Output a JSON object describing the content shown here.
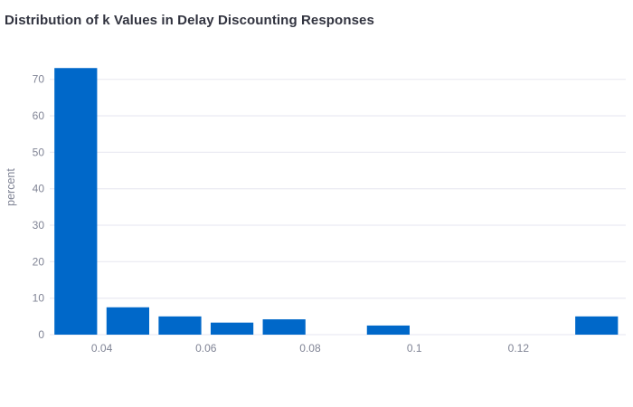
{
  "chart": {
    "title": "Distribution of k Values in Delay Discounting Responses"
  },
  "chart_data": {
    "type": "bar",
    "subtype": "histogram",
    "title": "Distribution of k Values in Delay Discounting Responses",
    "xlabel": "",
    "ylabel": "percent",
    "bin_width": 0.01,
    "bins": [
      {
        "start": 0.03,
        "end": 0.04,
        "percent": 73.1
      },
      {
        "start": 0.04,
        "end": 0.05,
        "percent": 7.5
      },
      {
        "start": 0.05,
        "end": 0.06,
        "percent": 5.0
      },
      {
        "start": 0.06,
        "end": 0.07,
        "percent": 3.3
      },
      {
        "start": 0.07,
        "end": 0.08,
        "percent": 4.2
      },
      {
        "start": 0.08,
        "end": 0.09,
        "percent": 0
      },
      {
        "start": 0.09,
        "end": 0.1,
        "percent": 2.5
      },
      {
        "start": 0.1,
        "end": 0.11,
        "percent": 0
      },
      {
        "start": 0.11,
        "end": 0.12,
        "percent": 0
      },
      {
        "start": 0.12,
        "end": 0.13,
        "percent": 0
      },
      {
        "start": 0.13,
        "end": 0.14,
        "percent": 5.0
      }
    ],
    "x_ticks": [
      {
        "value": 0.04,
        "label": "0.04"
      },
      {
        "value": 0.06,
        "label": "0.06"
      },
      {
        "value": 0.08,
        "label": "0.08"
      },
      {
        "value": 0.1,
        "label": "0.1"
      },
      {
        "value": 0.12,
        "label": "0.12"
      }
    ],
    "y_ticks": [
      {
        "value": 0,
        "label": "0"
      },
      {
        "value": 10,
        "label": "10"
      },
      {
        "value": 20,
        "label": "20"
      },
      {
        "value": 30,
        "label": "30"
      },
      {
        "value": 40,
        "label": "40"
      },
      {
        "value": 50,
        "label": "50"
      },
      {
        "value": 60,
        "label": "60"
      },
      {
        "value": 70,
        "label": "70"
      }
    ],
    "xlim": [
      0.03,
      0.1406
    ],
    "ylim": [
      0,
      74.4
    ],
    "grid": "horizontal-only",
    "legend": "none",
    "colors": {
      "bar": "#0068c9",
      "grid": "#ebebf3",
      "tick_label": "#808495",
      "title": "#31333f",
      "background": "#ffffff"
    }
  }
}
